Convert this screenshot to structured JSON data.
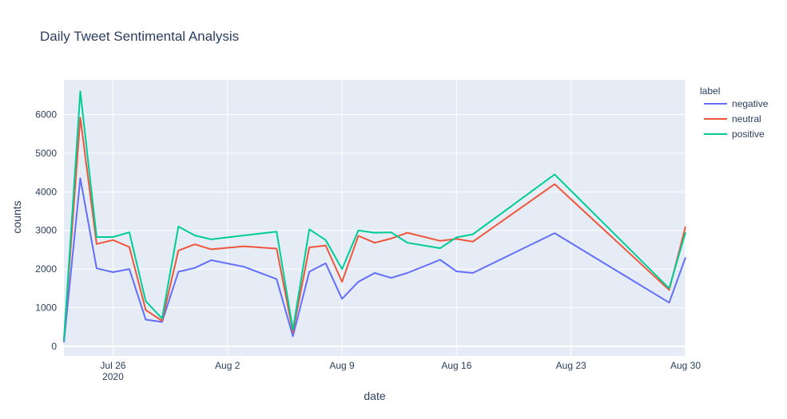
{
  "chart_data": {
    "type": "line",
    "title": "Daily Tweet Sentimental Analysis",
    "xlabel": "date",
    "ylabel": "counts",
    "x_start": "2020-07-23",
    "x_end": "2020-08-30",
    "ylim": [
      -250,
      6900
    ],
    "y_ticks": [
      0,
      1000,
      2000,
      3000,
      4000,
      5000,
      6000
    ],
    "x_ticks": [
      {
        "date": "2020-07-26",
        "label": "Jul 26",
        "sublabel": "2020"
      },
      {
        "date": "2020-08-02",
        "label": "Aug 2",
        "sublabel": ""
      },
      {
        "date": "2020-08-09",
        "label": "Aug 9",
        "sublabel": ""
      },
      {
        "date": "2020-08-16",
        "label": "Aug 16",
        "sublabel": ""
      },
      {
        "date": "2020-08-23",
        "label": "Aug 23",
        "sublabel": ""
      },
      {
        "date": "2020-08-30",
        "label": "Aug 30",
        "sublabel": ""
      }
    ],
    "grid": true,
    "legend_title": "label",
    "legend_position": "top-right",
    "series": [
      {
        "name": "negative",
        "color": "#636efa",
        "points": [
          [
            "2020-07-23",
            100
          ],
          [
            "2020-07-24",
            4350
          ],
          [
            "2020-07-25",
            2020
          ],
          [
            "2020-07-26",
            1920
          ],
          [
            "2020-07-27",
            2000
          ],
          [
            "2020-07-28",
            690
          ],
          [
            "2020-07-29",
            630
          ],
          [
            "2020-07-30",
            1930
          ],
          [
            "2020-07-31",
            2030
          ],
          [
            "2020-08-01",
            2230
          ],
          [
            "2020-08-03",
            2060
          ],
          [
            "2020-08-05",
            1740
          ],
          [
            "2020-08-06",
            260
          ],
          [
            "2020-08-07",
            1930
          ],
          [
            "2020-08-08",
            2150
          ],
          [
            "2020-08-09",
            1230
          ],
          [
            "2020-08-10",
            1670
          ],
          [
            "2020-08-11",
            1900
          ],
          [
            "2020-08-12",
            1770
          ],
          [
            "2020-08-13",
            1900
          ],
          [
            "2020-08-15",
            2240
          ],
          [
            "2020-08-16",
            1940
          ],
          [
            "2020-08-17",
            1900
          ],
          [
            "2020-08-22",
            2930
          ],
          [
            "2020-08-29",
            1130
          ],
          [
            "2020-08-30",
            2300
          ]
        ]
      },
      {
        "name": "neutral",
        "color": "#ef553b",
        "points": [
          [
            "2020-07-23",
            170
          ],
          [
            "2020-07-24",
            5920
          ],
          [
            "2020-07-25",
            2650
          ],
          [
            "2020-07-26",
            2750
          ],
          [
            "2020-07-27",
            2570
          ],
          [
            "2020-07-28",
            940
          ],
          [
            "2020-07-29",
            660
          ],
          [
            "2020-07-30",
            2480
          ],
          [
            "2020-07-31",
            2640
          ],
          [
            "2020-08-01",
            2510
          ],
          [
            "2020-08-03",
            2590
          ],
          [
            "2020-08-05",
            2530
          ],
          [
            "2020-08-06",
            370
          ],
          [
            "2020-08-07",
            2560
          ],
          [
            "2020-08-08",
            2610
          ],
          [
            "2020-08-09",
            1670
          ],
          [
            "2020-08-10",
            2860
          ],
          [
            "2020-08-11",
            2680
          ],
          [
            "2020-08-12",
            2790
          ],
          [
            "2020-08-13",
            2940
          ],
          [
            "2020-08-15",
            2730
          ],
          [
            "2020-08-16",
            2780
          ],
          [
            "2020-08-17",
            2710
          ],
          [
            "2020-08-22",
            4200
          ],
          [
            "2020-08-29",
            1460
          ],
          [
            "2020-08-30",
            3100
          ]
        ]
      },
      {
        "name": "positive",
        "color": "#00cc96",
        "points": [
          [
            "2020-07-23",
            150
          ],
          [
            "2020-07-24",
            6600
          ],
          [
            "2020-07-25",
            2830
          ],
          [
            "2020-07-26",
            2830
          ],
          [
            "2020-07-27",
            2950
          ],
          [
            "2020-07-28",
            1170
          ],
          [
            "2020-07-29",
            720
          ],
          [
            "2020-07-30",
            3100
          ],
          [
            "2020-07-31",
            2870
          ],
          [
            "2020-08-01",
            2770
          ],
          [
            "2020-08-03",
            2870
          ],
          [
            "2020-08-05",
            2970
          ],
          [
            "2020-08-06",
            430
          ],
          [
            "2020-08-07",
            3030
          ],
          [
            "2020-08-08",
            2750
          ],
          [
            "2020-08-09",
            2000
          ],
          [
            "2020-08-10",
            3000
          ],
          [
            "2020-08-11",
            2940
          ],
          [
            "2020-08-12",
            2950
          ],
          [
            "2020-08-13",
            2680
          ],
          [
            "2020-08-15",
            2540
          ],
          [
            "2020-08-16",
            2820
          ],
          [
            "2020-08-17",
            2900
          ],
          [
            "2020-08-22",
            4450
          ],
          [
            "2020-08-29",
            1500
          ],
          [
            "2020-08-30",
            2950
          ]
        ]
      }
    ]
  }
}
